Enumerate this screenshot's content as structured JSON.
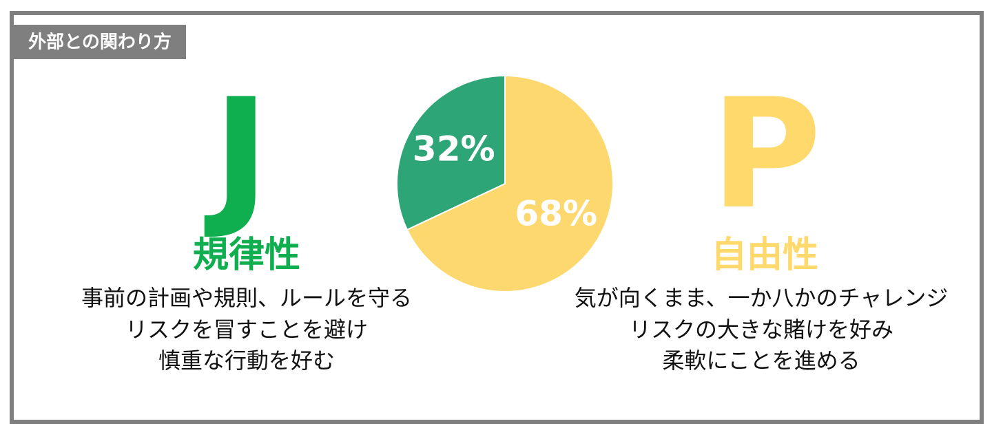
{
  "section_label": "外部との関わり方",
  "left": {
    "letter": "J",
    "title": "規律性",
    "lines": [
      "事前の計画や規則、ルールを守る",
      "リスクを冒すことを避け",
      "慎重な行動を好む"
    ]
  },
  "right": {
    "letter": "P",
    "title": "自由性",
    "lines": [
      "気が向くまま、一か八かのチャレンジ",
      "リスクの大きな賭けを好み",
      "柔軟にことを進める"
    ]
  },
  "chart_data": {
    "type": "pie",
    "values": [
      68,
      32
    ],
    "value_labels": [
      "68%",
      "32%"
    ],
    "colors": [
      "#fdd86f",
      "#2ea576"
    ]
  }
}
